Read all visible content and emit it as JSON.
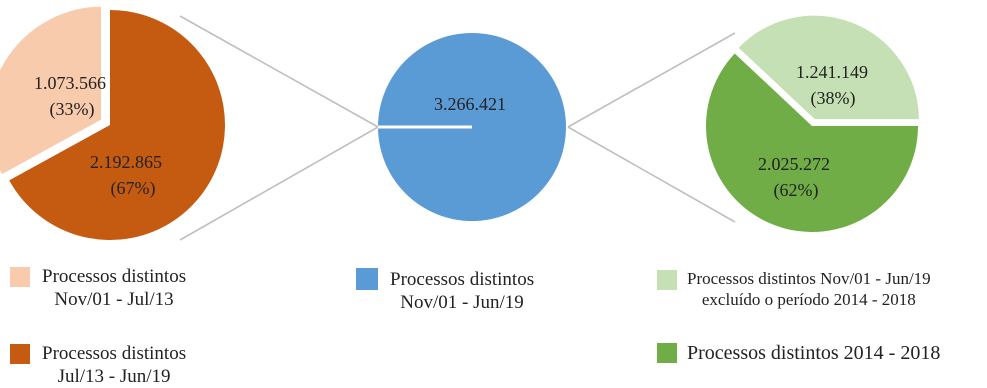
{
  "chart_data": [
    {
      "type": "pie",
      "slices": [
        {
          "value_label": "1.073.566",
          "pct_label": "(33%)",
          "value": 1073566,
          "share": 0.33,
          "color": "#F8CBAD"
        },
        {
          "value_label": "2.192.865",
          "pct_label": "(67%)",
          "value": 2192865,
          "share": 0.67,
          "color": "#C55A11"
        }
      ]
    },
    {
      "type": "pie",
      "slices": [
        {
          "value_label": "3.266.421",
          "pct_label": "",
          "value": 3266421,
          "share": 1.0,
          "color": "#5B9BD5"
        }
      ]
    },
    {
      "type": "pie",
      "slices": [
        {
          "value_label": "1.241.149",
          "pct_label": "(38%)",
          "value": 1241149,
          "share": 0.38,
          "color": "#C5E0B4"
        },
        {
          "value_label": "2.025.272",
          "pct_label": "(62%)",
          "value": 2025272,
          "share": 0.62,
          "color": "#70AD47"
        }
      ]
    }
  ],
  "legend": [
    {
      "color": "#F8CBAD",
      "line1": "Processos distintos",
      "line2": "Nov/01 -  Jul/13"
    },
    {
      "color": "#C55A11",
      "line1": "Processos distintos",
      "line2": "Jul/13 - Jun/19"
    },
    {
      "color": "#5B9BD5",
      "line1": "Processos distintos",
      "line2": "Nov/01 - Jun/19"
    },
    {
      "color": "#C5E0B4",
      "line1": "Processos distintos Nov/01 - Jun/19",
      "line2": "excluído o período 2014 - 2018"
    },
    {
      "color": "#70AD47",
      "line1": "Processos distintos 2014 - 2018",
      "line2": ""
    }
  ]
}
